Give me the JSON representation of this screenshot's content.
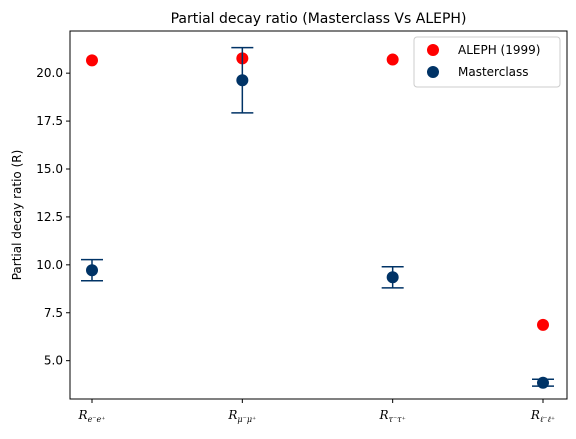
{
  "chart_data": {
    "type": "scatter",
    "title": "Partial decay ratio (Masterclass Vs ALEPH)",
    "xlabel": "",
    "ylabel": "Partial decay ratio (R)",
    "categories": [
      {
        "base": "R",
        "sub": "e⁻e⁺"
      },
      {
        "base": "R",
        "sub": "μ⁻μ⁺"
      },
      {
        "base": "R",
        "sub": "τ⁻τ⁺"
      },
      {
        "base": "R",
        "sub": "ℓ⁻ℓ⁺"
      }
    ],
    "ylim": [
      3.0,
      22.2
    ],
    "yticks": [
      5.0,
      7.5,
      10.0,
      12.5,
      15.0,
      17.5,
      20.0
    ],
    "ytick_labels": [
      "5.0",
      "7.5",
      "10.0",
      "12.5",
      "15.0",
      "17.5",
      "20.0"
    ],
    "grid": false,
    "legend_position": "top-right",
    "series": [
      {
        "name": "ALEPH (1999)",
        "color": "#ff0000",
        "values": [
          20.67,
          20.77,
          20.71,
          6.87
        ],
        "errors": null
      },
      {
        "name": "Masterclass",
        "color": "#003366",
        "values": [
          9.72,
          19.63,
          9.35,
          3.85
        ],
        "errors": [
          0.55,
          1.7,
          0.55,
          0.18
        ]
      }
    ]
  }
}
